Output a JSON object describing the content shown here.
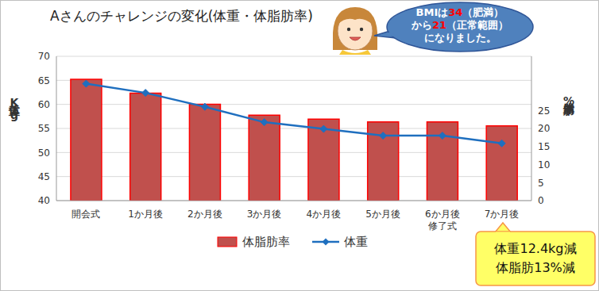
{
  "chart_data": {
    "type": "bar",
    "title": "Aさんのチャレンジの変化(体重・体脂肪率)",
    "categories": [
      "開会式",
      "1か月後",
      "2か月後",
      "3か月後",
      "4か月後",
      "5か月後",
      "6か月後\n修了式",
      "7か月後"
    ],
    "y_label": "体重Kg",
    "y2_label": "体脂肪率%",
    "series": [
      {
        "name": "体脂肪率",
        "type": "bar",
        "color": "#c0504d",
        "axis": "y2",
        "values": [
          33.6,
          29.8,
          26.7,
          23.7,
          22.6,
          21.8,
          21.8,
          20.7
        ]
      },
      {
        "name": "体重",
        "type": "line",
        "color": "#1f6fbf",
        "marker": "diamond",
        "line_style": "solid",
        "values": [
          64.3,
          62.4,
          59.5,
          56.3,
          54.9,
          53.5,
          53.5,
          51.9
        ]
      }
    ],
    "ylim": [
      40,
      70
    ],
    "yticks": [
      40,
      45,
      50,
      55,
      60,
      65,
      70
    ],
    "y2lim": [
      0,
      40
    ],
    "y2ticks": [
      0,
      5,
      10,
      15,
      20,
      25
    ],
    "grid": true,
    "legend": "bottom",
    "annotations": [
      {
        "lines": [
          [
            {
              "text": "BMIは"
            },
            {
              "text": "34",
              "color": "#ff0000"
            },
            {
              "text": "（肥満）"
            }
          ],
          [
            {
              "text": "から"
            },
            {
              "text": "21",
              "color": "#ff0000"
            },
            {
              "text": "（正常範囲）"
            }
          ],
          [
            {
              "text": "になりました。"
            }
          ]
        ]
      },
      {
        "lines": [
          [
            {
              "text": "体重12.4kg減"
            }
          ],
          [
            {
              "text": "体脂肪13%減"
            }
          ]
        ]
      }
    ]
  }
}
